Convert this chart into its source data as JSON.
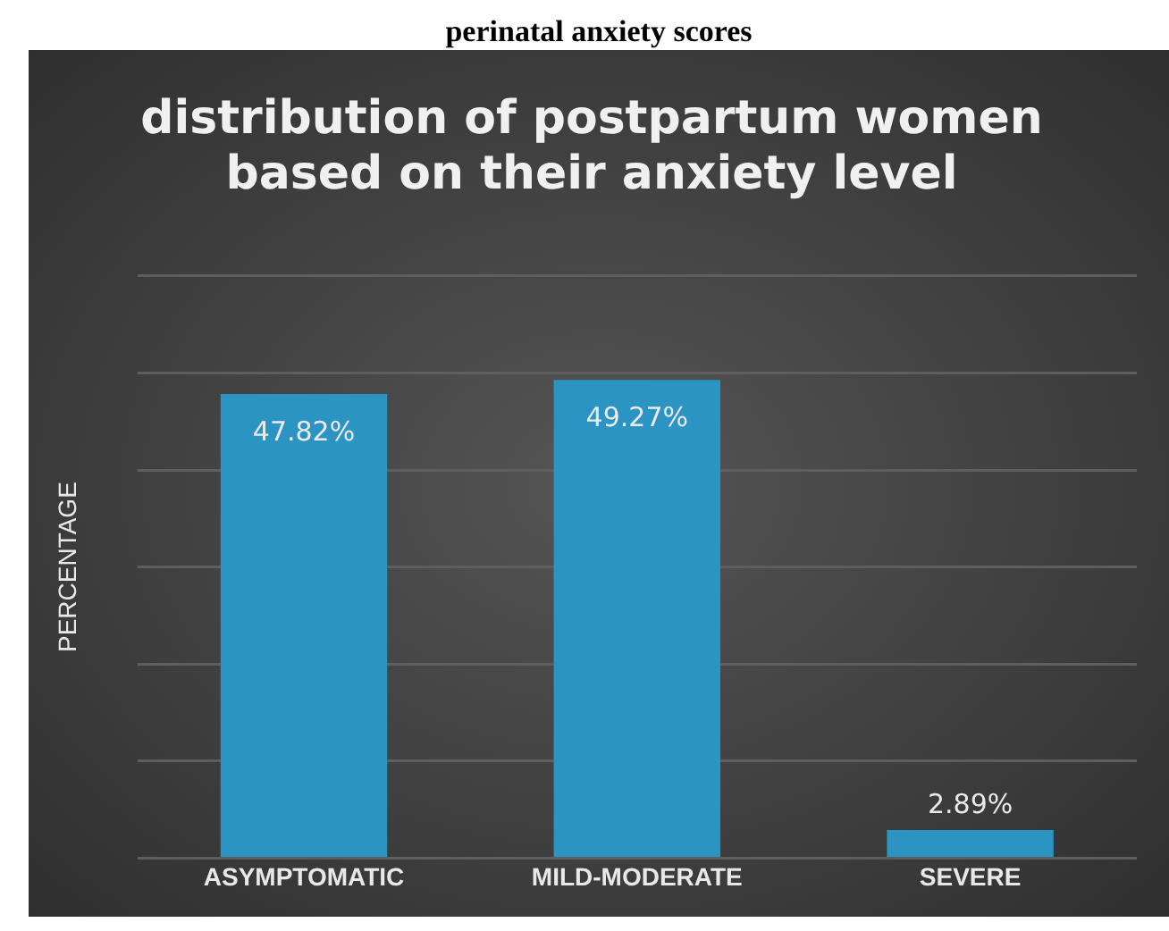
{
  "chart_data": {
    "type": "bar",
    "title": "distribution of postpartum women based on their anxiety level",
    "ylabel": "PERCENTAGE",
    "annotations": [
      "perinatal anxiety scores"
    ],
    "categories": [
      "ASYMPTOMATIC",
      "MILD-MODERATE",
      "SEVERE"
    ],
    "values": [
      47.82,
      49.27,
      2.89
    ],
    "value_labels": [
      "47.82%",
      "49.27%",
      "2.89%"
    ],
    "color": "#2b94c3",
    "ylim": [
      0,
      60
    ],
    "yticks": [
      {
        "value": 0,
        "label": null
      },
      {
        "value": 10,
        "label": null
      },
      {
        "value": 20,
        "label": null
      },
      {
        "value": 30,
        "label": null
      },
      {
        "value": 40,
        "label": null
      },
      {
        "value": 50,
        "label": null
      },
      {
        "value": 60,
        "label": null
      }
    ],
    "tick_labels": "x",
    "grid": "y",
    "legend": false
  }
}
